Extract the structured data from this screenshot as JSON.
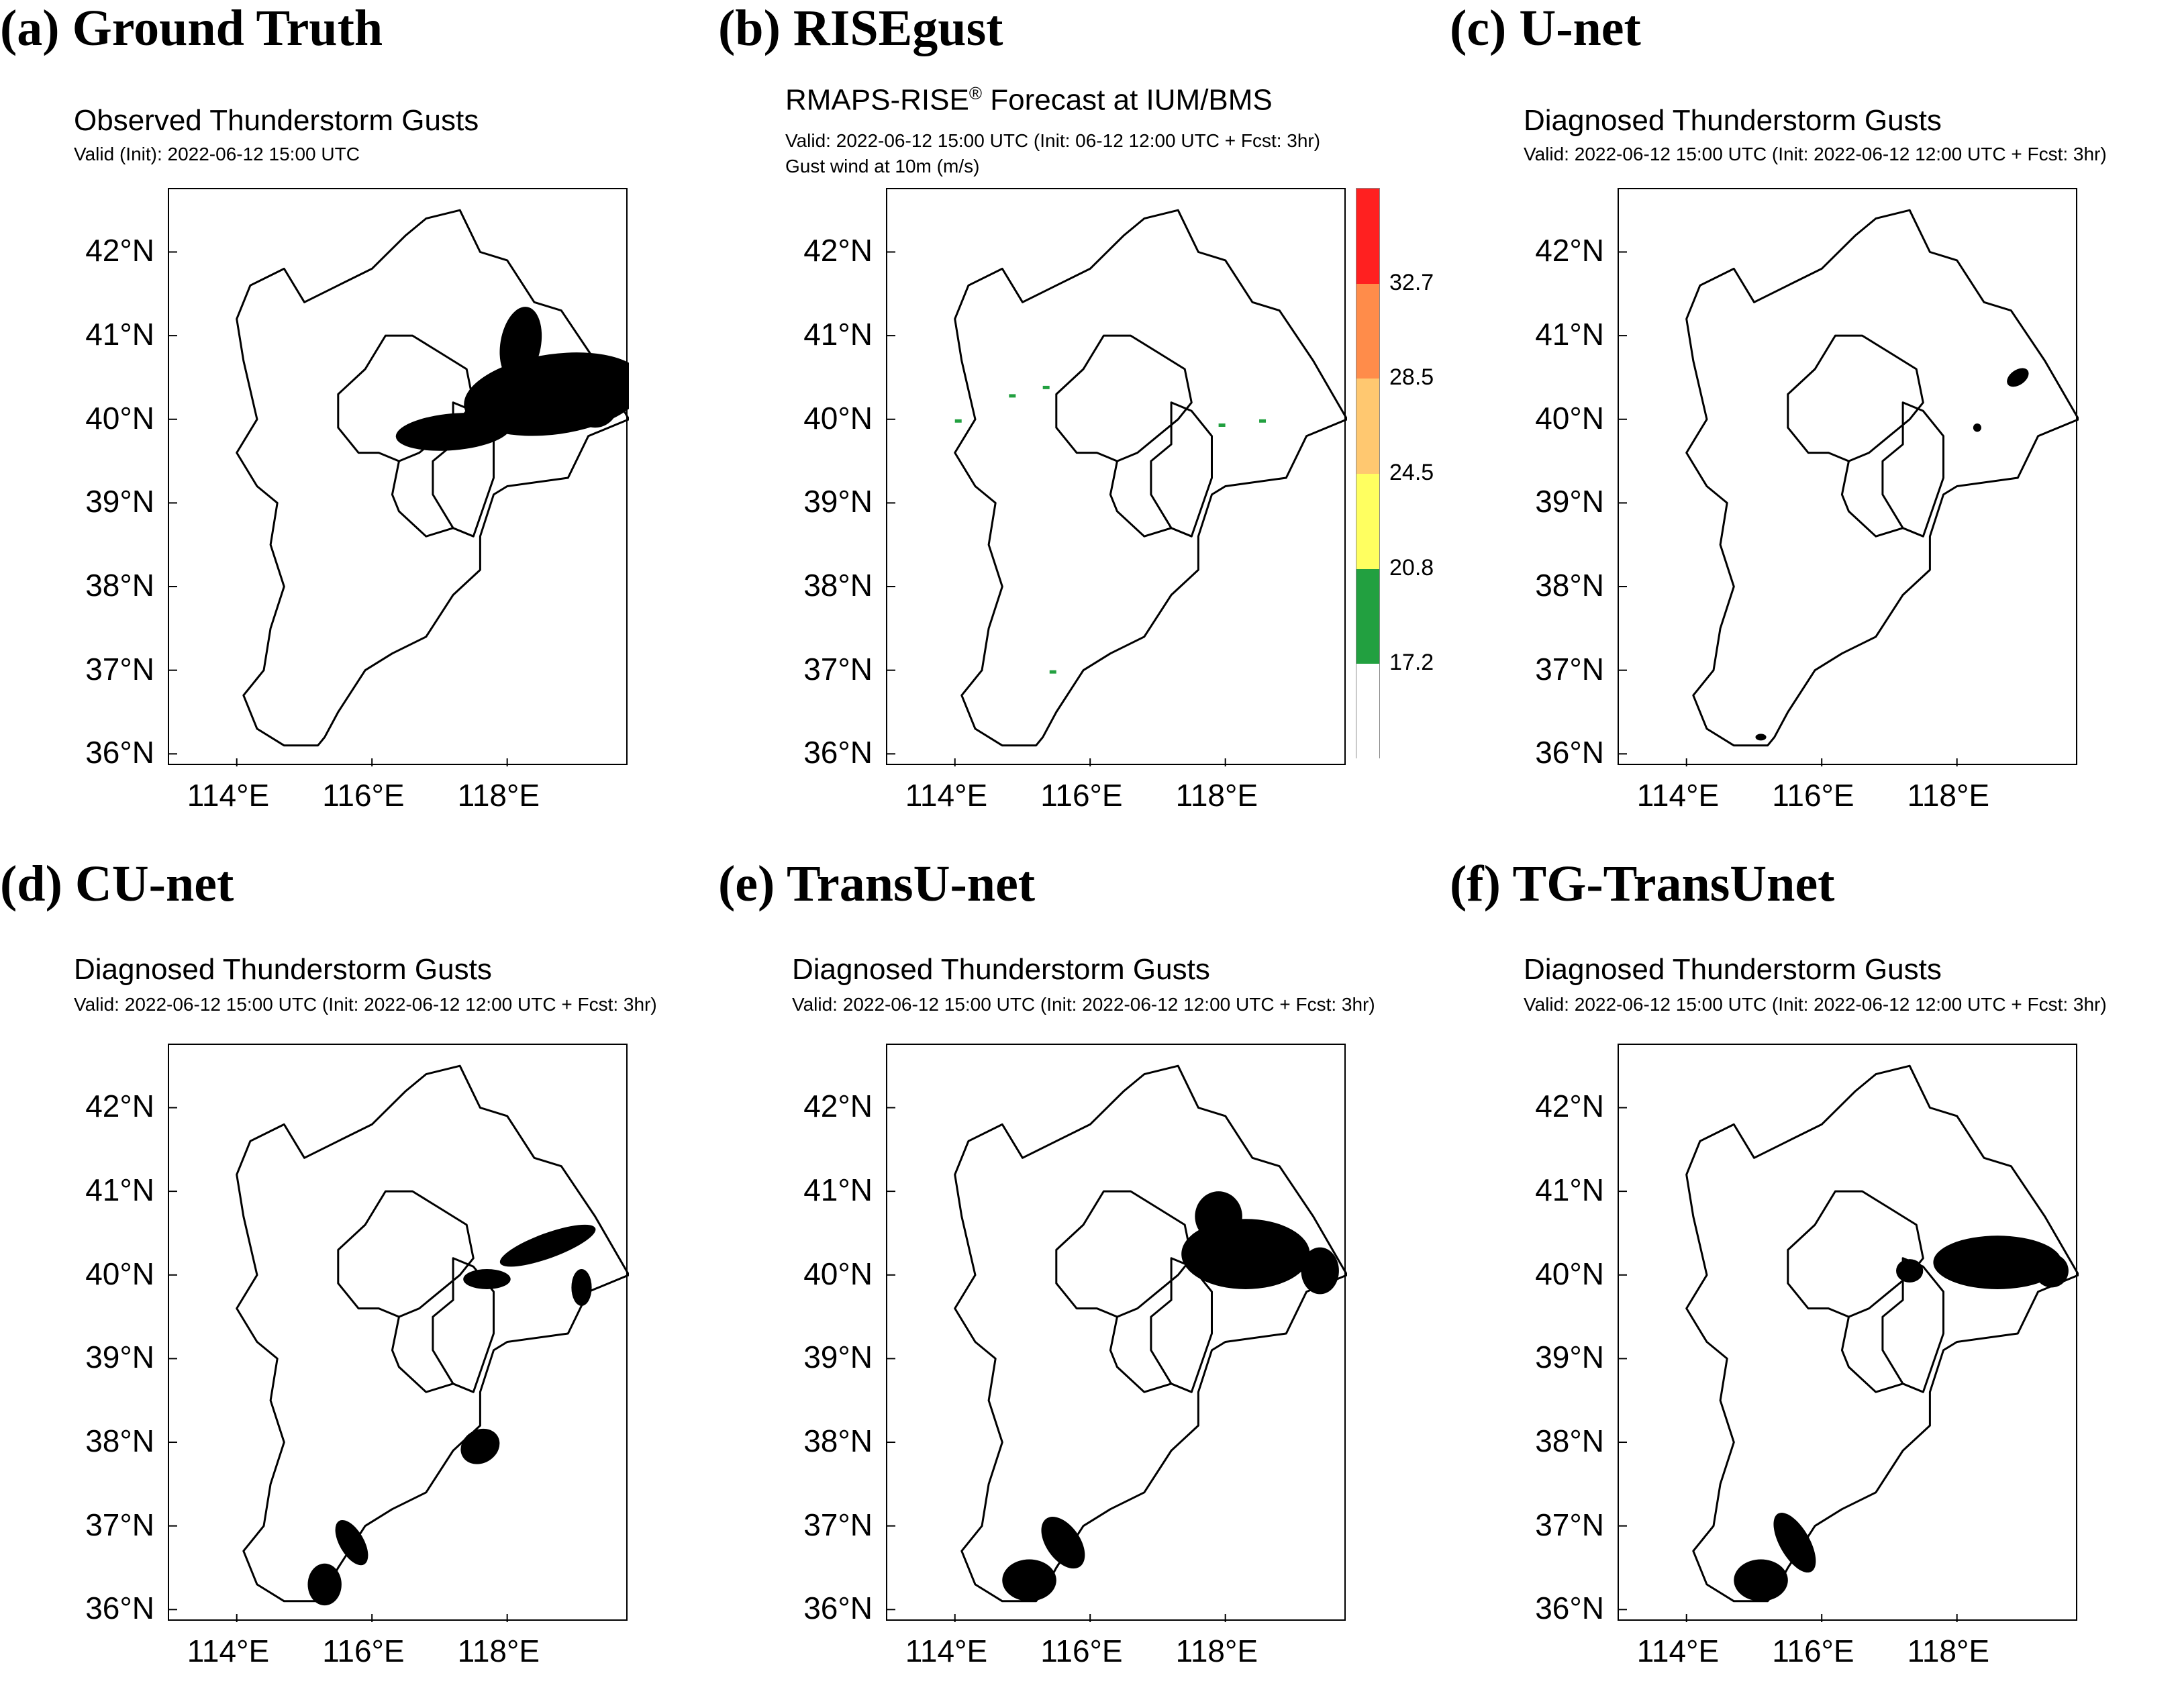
{
  "panels": [
    {
      "id": "a",
      "label": "(a) Ground Truth",
      "title": "Observed Thunderstorm Gusts",
      "subtitle": "Valid (Init): 2022-06-12 15:00 UTC",
      "subtitle2": "",
      "blobs": [
        [
          118.7,
          40.3,
          1.35,
          0.48,
          -8
        ],
        [
          117.2,
          39.85,
          0.85,
          0.22,
          -5
        ],
        [
          118.2,
          40.9,
          0.3,
          0.45,
          10
        ],
        [
          119.3,
          40.2,
          0.35,
          0.3,
          0
        ]
      ]
    },
    {
      "id": "b",
      "label": "(b) RISEgust",
      "title": "RMAPS-RISE",
      "title_suffix": " Forecast at IUM/BMS",
      "registered": "®",
      "subtitle": "Valid: 2022-06-12 15:00 UTC (Init: 06-12 12:00 UTC + Fcst: 3hr)",
      "subtitle2": "Gust wind at 10m (m/s)",
      "blobs": []
    },
    {
      "id": "c",
      "label": "(c) U-net",
      "title": "Diagnosed Thunderstorm Gusts",
      "subtitle": "Valid: 2022-06-12 15:00 UTC (Init: 2022-06-12 12:00 UTC + Fcst: 3hr)",
      "subtitle2": "",
      "blobs": [
        [
          118.9,
          40.5,
          0.18,
          0.09,
          -35
        ],
        [
          118.3,
          39.9,
          0.06,
          0.05,
          0
        ],
        [
          115.1,
          36.2,
          0.08,
          0.04,
          0
        ]
      ]
    },
    {
      "id": "d",
      "label": "(d) CU-net",
      "title": "Diagnosed Thunderstorm Gusts",
      "subtitle": "Valid: 2022-06-12 15:00 UTC (Init: 2022-06-12 12:00 UTC + Fcst: 3hr)",
      "subtitle2": "",
      "blobs": [
        [
          118.6,
          40.35,
          0.75,
          0.15,
          -20
        ],
        [
          117.7,
          39.95,
          0.35,
          0.12,
          0
        ],
        [
          119.1,
          39.85,
          0.15,
          0.22,
          0
        ],
        [
          117.6,
          37.95,
          0.3,
          0.2,
          -30
        ],
        [
          115.7,
          36.8,
          0.18,
          0.3,
          -30
        ],
        [
          115.3,
          36.3,
          0.25,
          0.25,
          0
        ]
      ]
    },
    {
      "id": "e",
      "label": "(e) TransU-net",
      "title": "Diagnosed Thunderstorm Gusts",
      "subtitle": "Valid: 2022-06-12 15:00 UTC (Init: 2022-06-12 12:00 UTC + Fcst: 3hr)",
      "subtitle2": "",
      "blobs": [
        [
          118.3,
          40.25,
          0.95,
          0.42,
          0
        ],
        [
          117.9,
          40.7,
          0.35,
          0.3,
          0
        ],
        [
          119.4,
          40.05,
          0.28,
          0.28,
          0
        ],
        [
          115.6,
          36.8,
          0.25,
          0.35,
          -35
        ],
        [
          115.1,
          36.35,
          0.4,
          0.25,
          0
        ]
      ]
    },
    {
      "id": "f",
      "label": "(f) TG-TransUnet",
      "title": "Diagnosed Thunderstorm Gusts",
      "subtitle": "Valid: 2022-06-12 15:00 UTC (Init: 2022-06-12 12:00 UTC + Fcst: 3hr)",
      "subtitle2": "",
      "blobs": [
        [
          118.6,
          40.15,
          0.95,
          0.32,
          0
        ],
        [
          117.3,
          40.05,
          0.2,
          0.14,
          0
        ],
        [
          119.4,
          40.05,
          0.25,
          0.2,
          0
        ],
        [
          115.6,
          36.8,
          0.22,
          0.4,
          -30
        ],
        [
          115.1,
          36.35,
          0.4,
          0.25,
          0
        ]
      ]
    }
  ],
  "axes": {
    "lat_ticks": [
      "42°N",
      "41°N",
      "40°N",
      "39°N",
      "38°N",
      "37°N",
      "36°N"
    ],
    "lat_values": [
      42,
      41,
      40,
      39,
      38,
      37,
      36
    ],
    "lon_ticks": [
      "114°E",
      "116°E",
      "118°E"
    ],
    "lon_values": [
      114,
      116,
      118
    ],
    "lon_range": [
      113.0,
      119.8
    ],
    "lat_range": [
      35.85,
      42.75
    ]
  },
  "colorbar": {
    "labels": [
      "32.7",
      "28.5",
      "24.5",
      "20.8",
      "17.2"
    ],
    "colors": [
      "#ff2020",
      "#ff8c4a",
      "#ffc870",
      "#ffff60",
      "#22a040",
      "#ffffff"
    ]
  },
  "outline": {
    "hebei": [
      [
        115.2,
        36.1
      ],
      [
        114.7,
        36.1
      ],
      [
        114.3,
        36.3
      ],
      [
        114.1,
        36.7
      ],
      [
        114.4,
        37.0
      ],
      [
        114.5,
        37.5
      ],
      [
        114.7,
        38.0
      ],
      [
        114.5,
        38.5
      ],
      [
        114.6,
        39.0
      ],
      [
        114.3,
        39.2
      ],
      [
        114.0,
        39.6
      ],
      [
        114.3,
        40.0
      ],
      [
        114.1,
        40.7
      ],
      [
        114.0,
        41.2
      ],
      [
        114.2,
        41.6
      ],
      [
        114.7,
        41.8
      ],
      [
        115.0,
        41.4
      ],
      [
        115.5,
        41.6
      ],
      [
        116.0,
        41.8
      ],
      [
        116.5,
        42.2
      ],
      [
        116.8,
        42.4
      ],
      [
        117.3,
        42.5
      ],
      [
        117.6,
        42.0
      ],
      [
        118.0,
        41.9
      ],
      [
        118.4,
        41.4
      ],
      [
        118.8,
        41.3
      ],
      [
        119.3,
        40.7
      ],
      [
        119.8,
        40.0
      ],
      [
        119.2,
        39.8
      ],
      [
        118.9,
        39.3
      ],
      [
        118.0,
        39.2
      ],
      [
        117.8,
        39.1
      ],
      [
        117.6,
        38.6
      ],
      [
        117.6,
        38.2
      ],
      [
        117.2,
        37.9
      ],
      [
        116.8,
        37.4
      ],
      [
        116.3,
        37.2
      ],
      [
        115.9,
        37.0
      ],
      [
        115.5,
        36.5
      ],
      [
        115.3,
        36.2
      ],
      [
        115.2,
        36.1
      ]
    ],
    "beijing": [
      [
        115.5,
        39.9
      ],
      [
        115.5,
        40.3
      ],
      [
        115.9,
        40.6
      ],
      [
        116.2,
        41.0
      ],
      [
        116.6,
        41.0
      ],
      [
        117.0,
        40.8
      ],
      [
        117.4,
        40.6
      ],
      [
        117.5,
        40.2
      ],
      [
        117.3,
        40.0
      ],
      [
        117.0,
        39.8
      ],
      [
        116.7,
        39.6
      ],
      [
        116.4,
        39.5
      ],
      [
        116.1,
        39.6
      ],
      [
        115.8,
        39.6
      ],
      [
        115.5,
        39.9
      ]
    ],
    "tianjin": [
      [
        117.2,
        40.2
      ],
      [
        117.5,
        40.1
      ],
      [
        117.8,
        39.8
      ],
      [
        117.8,
        39.3
      ],
      [
        117.5,
        38.6
      ],
      [
        117.2,
        38.7
      ],
      [
        116.9,
        39.1
      ],
      [
        116.9,
        39.5
      ],
      [
        117.2,
        39.7
      ],
      [
        117.2,
        40.2
      ]
    ],
    "inner_line": [
      [
        116.4,
        39.5
      ],
      [
        116.3,
        39.1
      ],
      [
        116.4,
        38.9
      ],
      [
        116.8,
        38.6
      ],
      [
        117.2,
        38.7
      ]
    ]
  }
}
